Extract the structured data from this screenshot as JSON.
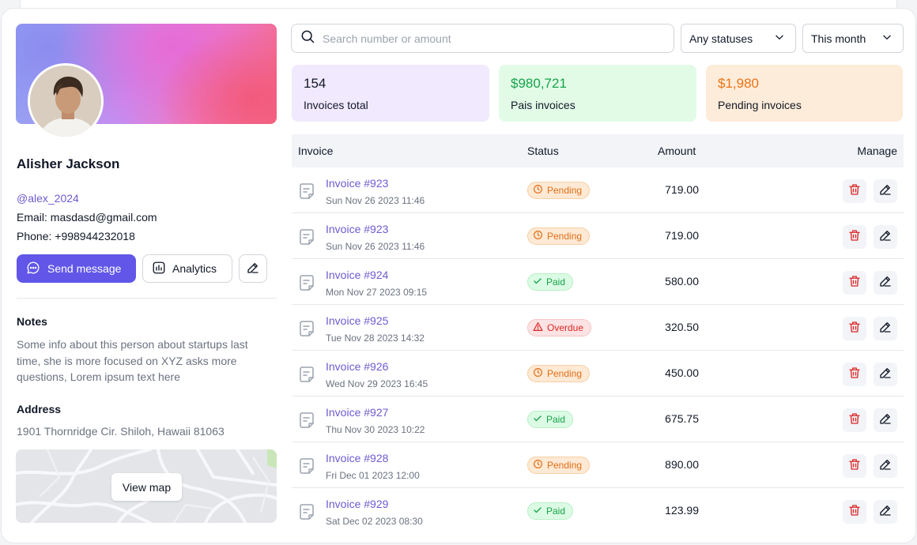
{
  "profile": {
    "name": "Alisher Jackson",
    "handle": "@alex_2024",
    "email": "Email: masdasd@gmail.com",
    "phone": "Phone: +998944232018",
    "send_message_label": "Send message",
    "analytics_label": "Analytics",
    "notes_title": "Notes",
    "notes_text": "Some info about this person about startups last time, she is more focused on XYZ asks more questions, Lorem ipsum text here",
    "address_title": "Address",
    "address_text": "1901 Thornridge Cir. Shiloh, Hawaii 81063",
    "view_map_label": "View map"
  },
  "filters": {
    "search_placeholder": "Search number or amount",
    "status_value": "Any statuses",
    "period_value": "This month"
  },
  "stats": [
    {
      "value": "154",
      "label": "Invoices total"
    },
    {
      "value": "$980,721",
      "label": "Pais invoices"
    },
    {
      "value": "$1,980",
      "label": "Pending invoices"
    }
  ],
  "table": {
    "headers": {
      "invoice": "Invoice",
      "status": "Status",
      "amount": "Amount",
      "manage": "Manage"
    },
    "rows": [
      {
        "name": "Invoice #923",
        "date": "Sun Nov 26 2023 11:46",
        "status": "Pending",
        "status_type": "pending",
        "amount": "719.00"
      },
      {
        "name": "Invoice #923",
        "date": "Sun Nov 26 2023 11:46",
        "status": "Pending",
        "status_type": "pending",
        "amount": "719.00"
      },
      {
        "name": "Invoice #924",
        "date": "Mon Nov 27 2023 09:15",
        "status": "Paid",
        "status_type": "paid",
        "amount": "580.00"
      },
      {
        "name": "Invoice #925",
        "date": "Tue Nov 28 2023 14:32",
        "status": "Overdue",
        "status_type": "overdue",
        "amount": "320.50"
      },
      {
        "name": "Invoice #926",
        "date": "Wed Nov 29 2023 16:45",
        "status": "Pending",
        "status_type": "pending",
        "amount": "450.00"
      },
      {
        "name": "Invoice #927",
        "date": "Thu Nov 30 2023 10:22",
        "status": "Paid",
        "status_type": "paid",
        "amount": "675.75"
      },
      {
        "name": "Invoice #928",
        "date": "Fri Dec 01 2023 12:00",
        "status": "Pending",
        "status_type": "pending",
        "amount": "890.00"
      },
      {
        "name": "Invoice #929",
        "date": "Sat Dec 02 2023 08:30",
        "status": "Paid",
        "status_type": "paid",
        "amount": "123.99"
      }
    ]
  },
  "colors": {
    "accent": "#6156e8",
    "link": "#6d5bd0",
    "paid": "#16a34a",
    "pending": "#e0701a",
    "overdue": "#dc2626"
  }
}
